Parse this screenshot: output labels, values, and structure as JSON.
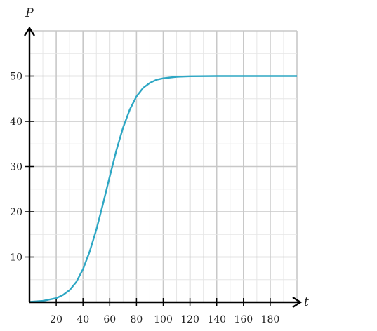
{
  "colors": {
    "curve": "#2ea7c4",
    "axis": "#000000",
    "grid_major": "#c8c8c8",
    "grid_minor": "#e6e6e6"
  },
  "chart_data": {
    "type": "line",
    "title": "",
    "xlabel": "t",
    "ylabel": "P",
    "xlim": [
      0,
      200
    ],
    "ylim": [
      0,
      60
    ],
    "grid": true,
    "x_ticks": [
      20,
      40,
      60,
      80,
      100,
      120,
      140,
      160,
      180
    ],
    "x_tick_labels": [
      "20",
      "40",
      "60",
      "80",
      "100",
      "120",
      "140",
      "160",
      "180"
    ],
    "y_ticks": [
      10,
      20,
      30,
      40,
      50
    ],
    "y_tick_labels": [
      "10",
      "20",
      "30",
      "40",
      "50"
    ],
    "series": [
      {
        "x": [
          0,
          10,
          20,
          25,
          30,
          35,
          40,
          45,
          50,
          55,
          60,
          65,
          70,
          75,
          80,
          85,
          90,
          95,
          100,
          110,
          120,
          140,
          160,
          180,
          200
        ],
        "y": [
          0.1,
          0.3,
          0.9,
          1.6,
          2.7,
          4.5,
          7.3,
          11.2,
          16.1,
          21.8,
          27.8,
          33.6,
          38.6,
          42.6,
          45.5,
          47.4,
          48.5,
          49.2,
          49.5,
          49.85,
          49.95,
          50.0,
          50.0,
          50.0,
          50.0
        ]
      }
    ]
  }
}
